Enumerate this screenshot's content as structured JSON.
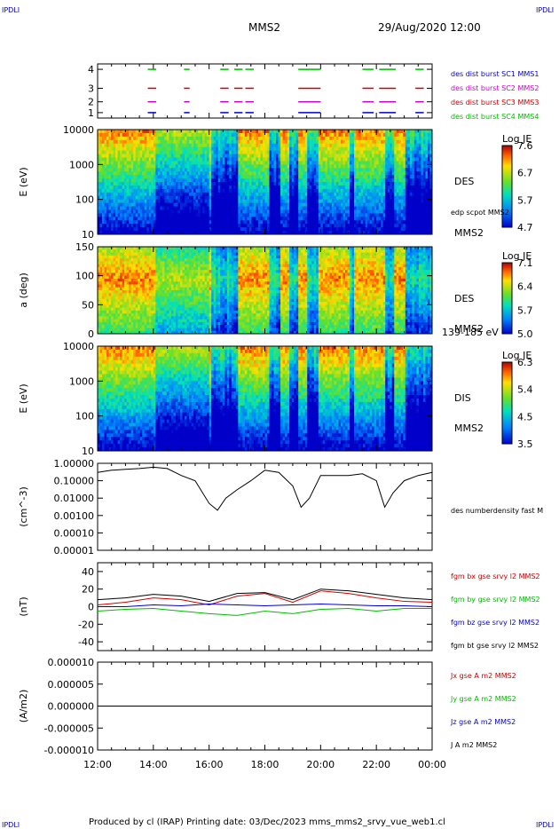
{
  "header": {
    "corner_label": "IPDLI",
    "spacecraft": "MMS2",
    "datetime": "29/Aug/2020 12:00"
  },
  "footer": {
    "text": "Produced by cl (IRAP)   Printing date: 03/Dec/2023   mms_mms2_srvy_vue_web1.cl"
  },
  "colors": {
    "mms1": "#0000cc",
    "mms2": "#cc00cc",
    "mms3": "#cc0000",
    "mms4": "#00bb00",
    "bx": "#cc0000",
    "by": "#00bb00",
    "bz": "#0000cc",
    "bt": "#000000"
  },
  "time_axis": {
    "labels": [
      "12:00",
      "14:00",
      "16:00",
      "18:00",
      "20:00",
      "22:00",
      "00:00"
    ]
  },
  "chart_data": [
    {
      "type": "scatter",
      "id": "burst",
      "ylabel": "",
      "y_ticks": [
        "1",
        "2",
        "3",
        "4"
      ],
      "ylim": [
        0.5,
        4.5
      ],
      "legend": [
        {
          "label": "des dist burst SC1 MMS1",
          "color": "#0000cc"
        },
        {
          "label": "des dist burst SC2 MMS2",
          "color": "#cc00cc"
        },
        {
          "label": "des dist burst SC3 MMS3",
          "color": "#cc0000"
        },
        {
          "label": "des dist burst SC4 MMS4",
          "color": "#00bb00"
        }
      ],
      "intervals_hours": [
        [
          13.8,
          14.1
        ],
        [
          15.1,
          15.3
        ],
        [
          16.4,
          16.7
        ],
        [
          16.9,
          17.2
        ],
        [
          17.3,
          17.6
        ],
        [
          19.2,
          20.0
        ],
        [
          21.5,
          21.9
        ],
        [
          22.1,
          22.7
        ],
        [
          23.4,
          23.7
        ]
      ]
    },
    {
      "type": "heatmap",
      "id": "des-energy",
      "ylabel": "E (eV)",
      "y_ticks": [
        "10000",
        "1000",
        "100",
        "10"
      ],
      "scale": "log",
      "side_labels": [
        "DES",
        "edp scpot MMS2",
        "MMS2"
      ],
      "colorbar": {
        "title": "Log JE",
        "ticks": [
          "7.6",
          "6.7",
          "5.7",
          "4.7"
        ],
        "range": [
          4.7,
          7.6
        ]
      }
    },
    {
      "type": "heatmap",
      "id": "des-pitch",
      "ylabel": "a (deg)",
      "y_ticks": [
        "150",
        "100",
        "50",
        "0"
      ],
      "ylim": [
        0,
        180
      ],
      "side_labels": [
        "DES",
        "MMS2",
        "139-185 eV"
      ],
      "colorbar": {
        "title": "Log JE",
        "ticks": [
          "7.1",
          "6.4",
          "5.7",
          "5.0"
        ],
        "range": [
          5.0,
          7.1
        ]
      }
    },
    {
      "type": "heatmap",
      "id": "dis-energy",
      "ylabel": "E (eV)",
      "y_ticks": [
        "10000",
        "1000",
        "100",
        "10"
      ],
      "scale": "log",
      "side_labels": [
        "DIS",
        "MMS2"
      ],
      "colorbar": {
        "title": "Log JE",
        "ticks": [
          "6.3",
          "5.4",
          "4.5",
          "3.5"
        ],
        "range": [
          3.5,
          6.3
        ]
      }
    },
    {
      "type": "line",
      "id": "density",
      "ylabel": "(cm^-3)",
      "y_ticks": [
        "1.00000",
        "0.10000",
        "0.01000",
        "0.00100",
        "0.00010",
        "0.00001"
      ],
      "scale": "log",
      "ylim": [
        1e-05,
        1
      ],
      "legend": [
        {
          "label": "des numberdensity fast M",
          "color": "#000000"
        }
      ],
      "series": [
        {
          "x": [
            12,
            12.5,
            13,
            13.5,
            14,
            14.5,
            15,
            15.5,
            16,
            16.3,
            16.6,
            17,
            17.5,
            18,
            18.5,
            19,
            19.3,
            19.6,
            20,
            20.5,
            21,
            21.5,
            22,
            22.3,
            22.6,
            23,
            23.5,
            24
          ],
          "y": [
            0.3,
            0.4,
            0.45,
            0.5,
            0.6,
            0.5,
            0.2,
            0.1,
            0.005,
            0.002,
            0.01,
            0.03,
            0.1,
            0.4,
            0.3,
            0.05,
            0.003,
            0.01,
            0.2,
            0.2,
            0.2,
            0.25,
            0.1,
            0.003,
            0.02,
            0.1,
            0.2,
            0.3
          ]
        }
      ]
    },
    {
      "type": "line",
      "id": "magnetic-field",
      "ylabel": "(nT)",
      "y_ticks": [
        "40",
        "20",
        "0",
        "-20",
        "-40"
      ],
      "ylim": [
        -50,
        50
      ],
      "legend": [
        {
          "label": "fgm bx gse srvy l2 MMS2",
          "color": "#cc0000"
        },
        {
          "label": "fgm by gse srvy l2 MMS2",
          "color": "#00bb00"
        },
        {
          "label": "fgm bz gse srvy l2 MMS2",
          "color": "#0000cc"
        },
        {
          "label": "fgm bt gse srvy l2 MMS2",
          "color": "#000000"
        }
      ],
      "series": [
        {
          "name": "bx",
          "x": [
            12,
            13,
            14,
            15,
            16,
            17,
            18,
            19,
            20,
            21,
            22,
            23,
            24
          ],
          "y": [
            2,
            5,
            10,
            8,
            2,
            12,
            15,
            5,
            18,
            15,
            10,
            6,
            5
          ]
        },
        {
          "name": "by",
          "x": [
            12,
            13,
            14,
            15,
            16,
            17,
            18,
            19,
            20,
            21,
            22,
            23,
            24
          ],
          "y": [
            -5,
            -3,
            -2,
            -5,
            -8,
            -10,
            -5,
            -8,
            -3,
            -2,
            -5,
            -2,
            -2
          ]
        },
        {
          "name": "bz",
          "x": [
            12,
            13,
            14,
            15,
            16,
            17,
            18,
            19,
            20,
            21,
            22,
            23,
            24
          ],
          "y": [
            0,
            0,
            2,
            1,
            3,
            2,
            1,
            2,
            3,
            2,
            1,
            1,
            0
          ]
        },
        {
          "name": "bt",
          "x": [
            12,
            13,
            14,
            15,
            16,
            17,
            18,
            19,
            20,
            21,
            22,
            23,
            24
          ],
          "y": [
            8,
            10,
            14,
            12,
            6,
            15,
            16,
            8,
            20,
            18,
            14,
            10,
            8
          ]
        }
      ]
    },
    {
      "type": "line",
      "id": "current-density",
      "ylabel": "(A/m2)",
      "y_ticks": [
        "0.000010",
        "0.000005",
        "0.000000",
        "-0.000005",
        "-0.000010"
      ],
      "ylim": [
        -1e-05,
        1e-05
      ],
      "legend": [
        {
          "label": "Jx gse A m2 MMS2",
          "color": "#cc0000"
        },
        {
          "label": "Jy gse A m2 MMS2",
          "color": "#00bb00"
        },
        {
          "label": "Jz gse A m2 MMS2",
          "color": "#0000cc"
        },
        {
          "label": "J A m2 MMS2",
          "color": "#000000"
        }
      ],
      "series": [
        {
          "name": "J",
          "x": [
            12,
            24
          ],
          "y": [
            0,
            0
          ]
        }
      ]
    }
  ]
}
